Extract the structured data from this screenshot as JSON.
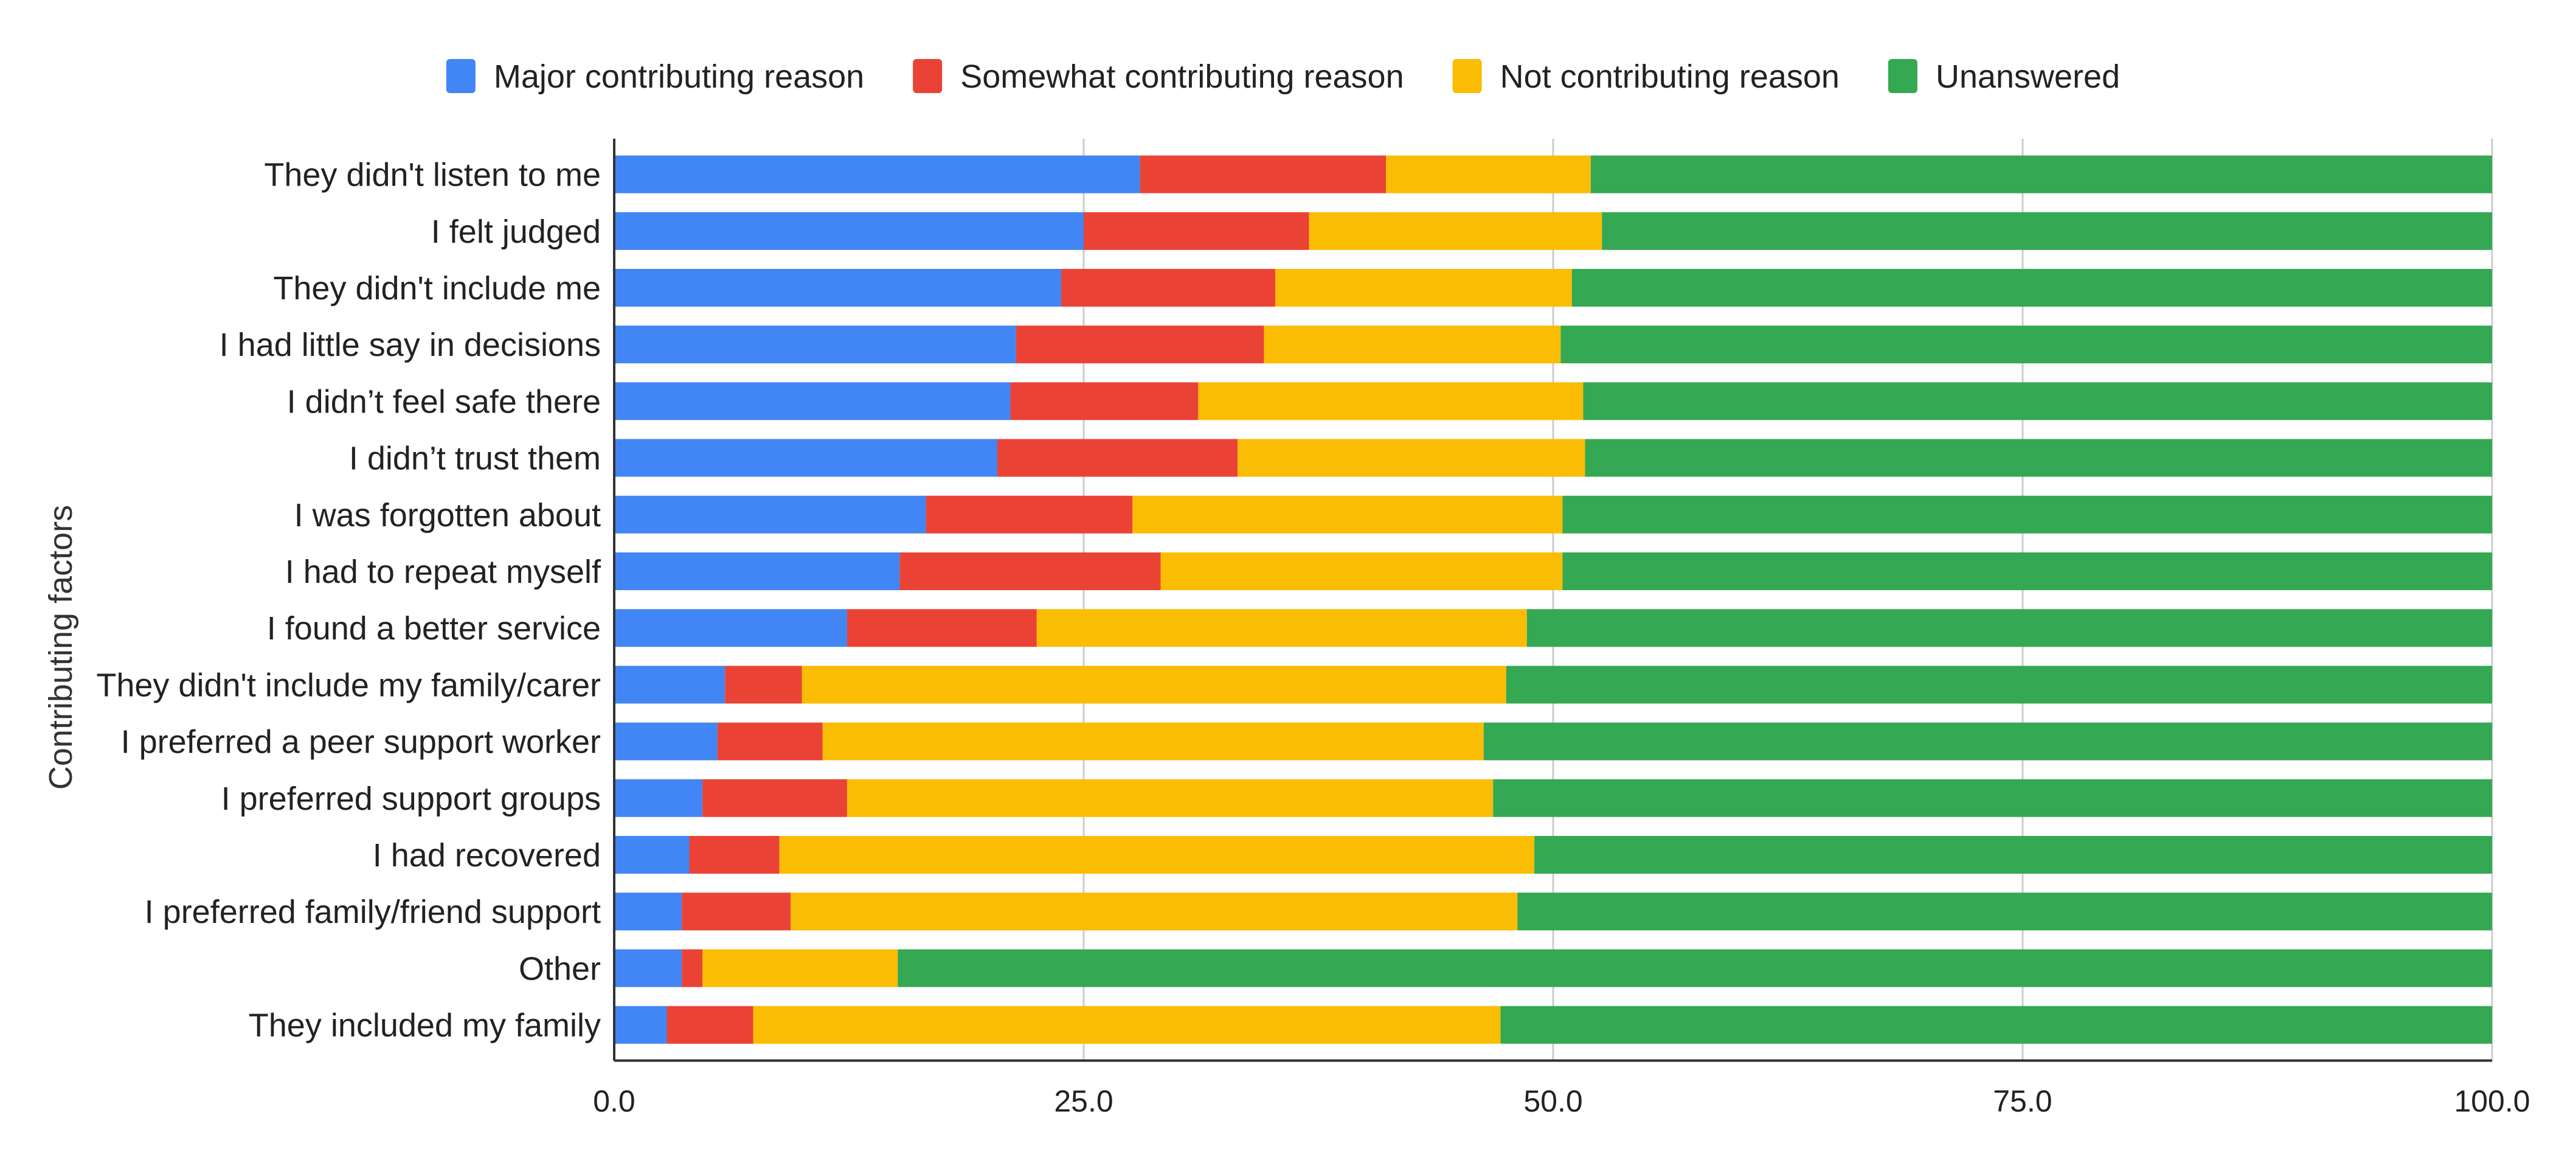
{
  "chart_data": {
    "type": "bar",
    "orientation": "horizontal",
    "stacked": true,
    "title": "",
    "xlabel": "",
    "ylabel": "Contributing factors",
    "xlim": [
      0,
      100
    ],
    "xticks": [
      0,
      25,
      50,
      75,
      100
    ],
    "xtick_labels": [
      "0.0",
      "25.0",
      "50.0",
      "75.0",
      "100.0"
    ],
    "grid": true,
    "legend_position": "top-center",
    "categories": [
      "They didn't listen to me",
      "I felt judged",
      "They didn't include me",
      "I had little say in decisions",
      "I didn’t feel safe there",
      "I didn’t trust them",
      "I was forgotten about",
      "I had to repeat myself",
      "I found a better service",
      "They didn't include my family/carer",
      "I preferred a peer support worker",
      "I preferred support groups",
      "I had recovered",
      "I preferred family/friend support",
      "Other",
      "They included my family"
    ],
    "series": [
      {
        "name": "Major contributing reason",
        "color": "#4285F4",
        "values": [
          28.0,
          25.0,
          23.8,
          21.4,
          21.1,
          20.4,
          16.6,
          15.2,
          12.4,
          5.9,
          5.5,
          4.7,
          4.0,
          3.6,
          3.6,
          2.8
        ]
      },
      {
        "name": "Somewhat contributing reason",
        "color": "#EA4335",
        "values": [
          13.1,
          12.0,
          11.4,
          13.2,
          10.0,
          12.8,
          11.0,
          13.9,
          10.1,
          4.1,
          5.6,
          7.7,
          4.8,
          5.8,
          1.1,
          4.6
        ]
      },
      {
        "name": "Not contributing reason",
        "color": "#FBBC04",
        "values": [
          10.9,
          15.6,
          15.8,
          15.8,
          20.5,
          18.5,
          22.9,
          21.4,
          26.1,
          37.5,
          35.2,
          34.4,
          40.2,
          38.7,
          10.4,
          39.8
        ]
      },
      {
        "name": "Unanswered",
        "color": "#34A853",
        "values": [
          48.0,
          47.4,
          49.0,
          49.6,
          48.4,
          48.3,
          49.5,
          49.5,
          51.4,
          52.5,
          53.7,
          53.2,
          51.0,
          51.9,
          84.9,
          52.8
        ]
      }
    ]
  }
}
